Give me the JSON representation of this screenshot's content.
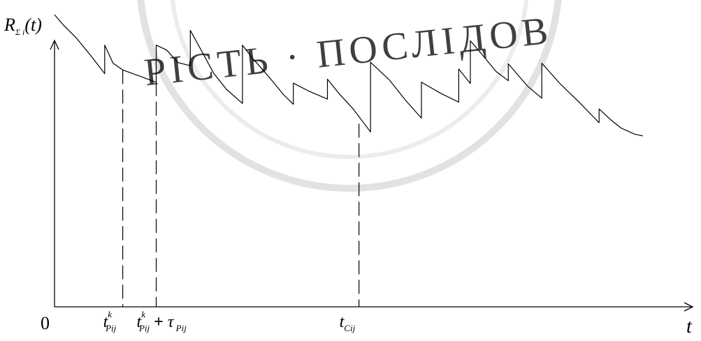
{
  "chart_data": {
    "type": "line",
    "title": "",
    "ylabel": "R",
    "ylabel_sub": "Σ i",
    "ylabel_arg": "(t)",
    "xlabel": "t",
    "origin_label": "0",
    "ylim": [
      0,
      1
    ],
    "xlim": [
      0,
      1
    ],
    "grid": false,
    "x_markers": [
      {
        "name": "t-p-ij-k",
        "x": 0.106,
        "y_at": 0.772,
        "base": "t",
        "sup": "k",
        "sub": "Pij",
        "suffix_op": "",
        "suffix_base": "",
        "suffix_sub": ""
      },
      {
        "name": "t-p-ij-k-plus-tau",
        "x": 0.158,
        "y_at": 0.732,
        "base": "t",
        "sup": "k",
        "sub": "Pij",
        "suffix_op": "+",
        "suffix_base": "τ",
        "suffix_sub": "Pij"
      },
      {
        "name": "t-c-ij",
        "x": 0.473,
        "y_at": 0.597,
        "base": "t",
        "sup": "",
        "sub": "Cij",
        "suffix_op": "",
        "suffix_base": "",
        "suffix_sub": ""
      }
    ],
    "series": [
      {
        "points": [
          [
            0.0,
            0.952
          ],
          [
            0.014,
            0.918
          ],
          [
            0.034,
            0.876
          ],
          [
            0.055,
            0.822
          ],
          [
            0.078,
            0.76
          ],
          [
            0.078,
            0.853
          ],
          [
            0.091,
            0.794
          ],
          [
            0.106,
            0.772
          ],
          [
            0.132,
            0.752
          ],
          [
            0.158,
            0.732
          ],
          [
            0.158,
            0.853
          ],
          [
            0.174,
            0.837
          ],
          [
            0.192,
            0.796
          ],
          [
            0.211,
            0.786
          ],
          [
            0.211,
            0.901
          ],
          [
            0.228,
            0.836
          ],
          [
            0.247,
            0.762
          ],
          [
            0.267,
            0.709
          ],
          [
            0.292,
            0.663
          ],
          [
            0.292,
            0.853
          ],
          [
            0.307,
            0.812
          ],
          [
            0.332,
            0.752
          ],
          [
            0.356,
            0.691
          ],
          [
            0.371,
            0.66
          ],
          [
            0.371,
            0.729
          ],
          [
            0.396,
            0.702
          ],
          [
            0.424,
            0.677
          ],
          [
            0.424,
            0.742
          ],
          [
            0.442,
            0.695
          ],
          [
            0.464,
            0.645
          ],
          [
            0.491,
            0.57
          ],
          [
            0.491,
            0.797
          ],
          [
            0.52,
            0.74
          ],
          [
            0.545,
            0.674
          ],
          [
            0.57,
            0.615
          ],
          [
            0.57,
            0.732
          ],
          [
            0.6,
            0.696
          ],
          [
            0.628,
            0.667
          ],
          [
            0.628,
            0.775
          ],
          [
            0.646,
            0.728
          ],
          [
            0.646,
            0.867
          ],
          [
            0.664,
            0.823
          ],
          [
            0.686,
            0.767
          ],
          [
            0.705,
            0.737
          ],
          [
            0.705,
            0.792
          ],
          [
            0.735,
            0.719
          ],
          [
            0.757,
            0.68
          ],
          [
            0.757,
            0.794
          ],
          [
            0.786,
            0.726
          ],
          [
            0.816,
            0.665
          ],
          [
            0.846,
            0.6
          ],
          [
            0.846,
            0.645
          ],
          [
            0.864,
            0.61
          ],
          [
            0.88,
            0.583
          ],
          [
            0.901,
            0.563
          ],
          [
            0.914,
            0.557
          ]
        ]
      }
    ]
  },
  "watermark": {
    "text": "РІСТЬ · ПОСЛІДОВ",
    "color": "#d9d9d9"
  }
}
